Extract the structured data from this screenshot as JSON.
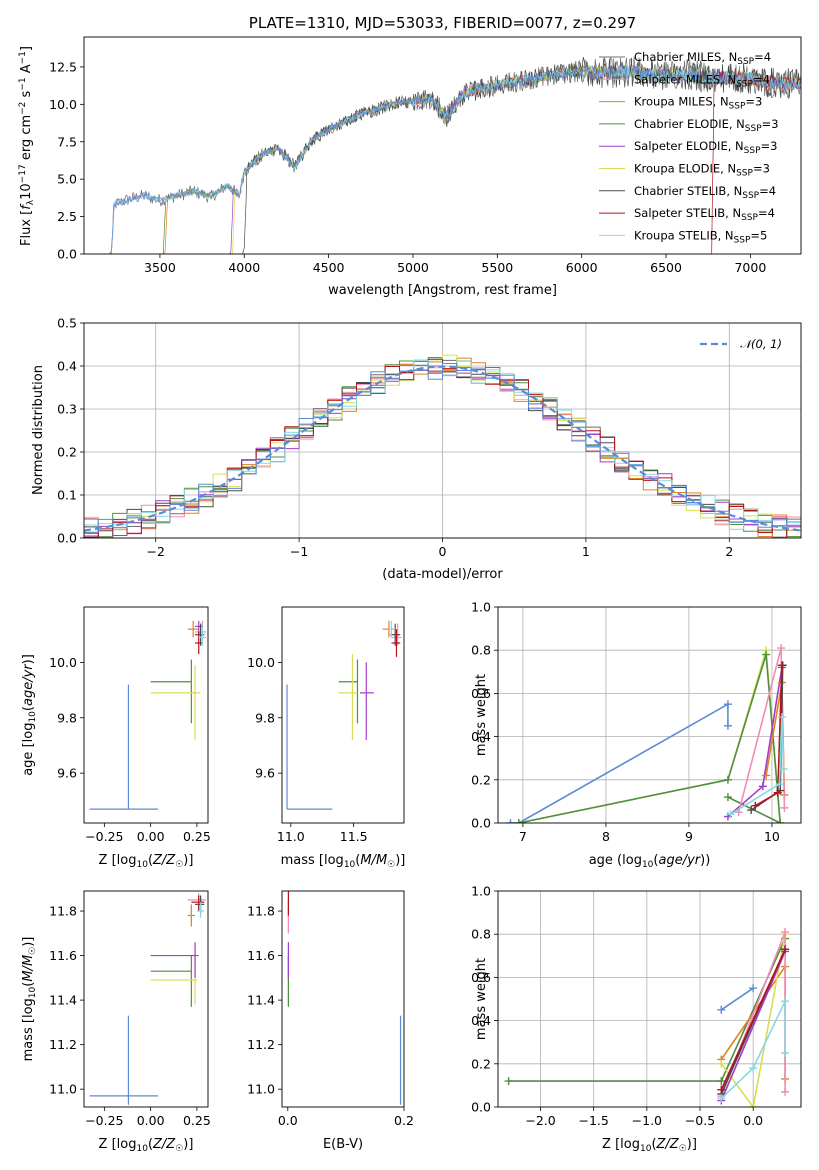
{
  "chart_data": [
    {
      "panel": "spectrum",
      "type": "line",
      "title": "PLATE=1310, MJD=53033, FIBERID=0077, z=0.297",
      "xlabel": "wavelength [Angstrom, rest frame]",
      "ylabel": "Flux [f_λ10^-17 erg cm^-2 s^-1 A^-1]",
      "xlim": [
        3050,
        7300
      ],
      "ylim": [
        0,
        14.5
      ],
      "xticks": [
        "3500",
        "4000",
        "4500",
        "5000",
        "5500",
        "6000",
        "6500",
        "7000"
      ],
      "yticks": [
        "0.0",
        "2.5",
        "5.0",
        "7.5",
        "10.0",
        "12.5"
      ],
      "legend": "top-right",
      "continuum": [
        [
          3200,
          0
        ],
        [
          3230,
          3.3
        ],
        [
          3300,
          3.6
        ],
        [
          3400,
          3.9
        ],
        [
          3500,
          3.6
        ],
        [
          3600,
          3.9
        ],
        [
          3700,
          4.2
        ],
        [
          3800,
          3.8
        ],
        [
          3900,
          4.6
        ],
        [
          3970,
          3.9
        ],
        [
          4000,
          5.5
        ],
        [
          4100,
          6.6
        ],
        [
          4200,
          7.1
        ],
        [
          4300,
          5.8
        ],
        [
          4400,
          7.6
        ],
        [
          4500,
          8.3
        ],
        [
          4600,
          8.9
        ],
        [
          4700,
          9.4
        ],
        [
          4800,
          9.7
        ],
        [
          4900,
          10.1
        ],
        [
          5000,
          10.2
        ],
        [
          5100,
          10.4
        ],
        [
          5200,
          9.2
        ],
        [
          5300,
          10.7
        ],
        [
          5400,
          11.0
        ],
        [
          5500,
          11.3
        ],
        [
          5600,
          11.5
        ],
        [
          5700,
          11.7
        ],
        [
          5800,
          11.9
        ],
        [
          5900,
          12.1
        ],
        [
          6000,
          12.2
        ],
        [
          6100,
          12.1
        ],
        [
          6200,
          12.1
        ],
        [
          6300,
          12.2
        ],
        [
          6400,
          12.0
        ],
        [
          6500,
          11.9
        ],
        [
          6600,
          12.0
        ],
        [
          6700,
          11.9
        ],
        [
          6800,
          11.8
        ],
        [
          6900,
          11.8
        ],
        [
          7000,
          11.7
        ],
        [
          7100,
          11.5
        ],
        [
          7200,
          11.4
        ]
      ],
      "cutoff_wavelengths": [
        3210,
        3210,
        3530,
        3520,
        3920,
        3930,
        4000,
        6770
      ],
      "series": [
        {
          "name": "Chabrier MILES",
          "nssp": "4",
          "color": "#6d6d6d"
        },
        {
          "name": "Salpeter MILES",
          "nssp": "4",
          "color": "#f28bb5"
        },
        {
          "name": "Kroupa MILES",
          "nssp": "3",
          "color": "#e0821f"
        },
        {
          "name": "Chabrier ELODIE",
          "nssp": "3",
          "color": "#4f8f3f"
        },
        {
          "name": "Salpeter ELODIE",
          "nssp": "3",
          "color": "#a23cc9"
        },
        {
          "name": "Kroupa ELODIE",
          "nssp": "3",
          "color": "#d9dc55"
        },
        {
          "name": "Chabrier STELIB",
          "nssp": "4",
          "color": "#4a4a4a"
        },
        {
          "name": "Salpeter STELIB",
          "nssp": "4",
          "color": "#b5121b"
        },
        {
          "name": "Kroupa STELIB",
          "nssp": "5",
          "color": "#86d9e2"
        }
      ]
    },
    {
      "panel": "residual_histogram",
      "type": "line",
      "xlabel": "(data-model)/error",
      "ylabel": "Normed distribution",
      "xlim": [
        -2.5,
        2.5
      ],
      "ylim": [
        0,
        0.5
      ],
      "xticks": [
        "−2",
        "−1",
        "0",
        "1",
        "2"
      ],
      "yticks": [
        "0.0",
        "0.1",
        "0.2",
        "0.3",
        "0.4",
        "0.5"
      ],
      "grid": true,
      "legend": "top-right",
      "gaussian_label": "𝒩(0, 1)",
      "gaussian_color": "#5b8bd6",
      "bin_width": 0.1,
      "histogram_colors": [
        "#6d6d6d",
        "#f28bb5",
        "#e0821f",
        "#4f8f3f",
        "#a23cc9",
        "#d9dc55",
        "#4a4a4a",
        "#b5121b",
        "#86d9e2",
        "#5b8bd6"
      ]
    },
    {
      "panel": "age_vs_Z",
      "type": "scatter",
      "xlabel": "Z [log10(Z/Z☉)]",
      "ylabel": "age [log10(age/yr)]",
      "xlim": [
        -0.36,
        0.31
      ],
      "ylim": [
        9.42,
        10.2
      ],
      "xticks": [
        "−0.25",
        "0.00",
        "0.25"
      ],
      "yticks": [
        "9.6",
        "9.8",
        "10.0"
      ],
      "points": [
        {
          "c": "#5b8bd6",
          "x": -0.12,
          "y": 9.47,
          "xl": -0.33,
          "xh": 0.04,
          "yl": 9.47,
          "yh": 9.92
        },
        {
          "c": "#4f8f3f",
          "x": 0.22,
          "y": 9.93,
          "xl": 0.0,
          "xh": 0.22,
          "yl": 9.78,
          "yh": 10.01
        },
        {
          "c": "#d9dc55",
          "x": 0.24,
          "y": 9.89,
          "xl": 0.0,
          "xh": 0.27,
          "yl": 9.72,
          "yh": 9.99
        },
        {
          "c": "#e0821f",
          "x": 0.23,
          "y": 10.12,
          "xl": 0.2,
          "xh": 0.26,
          "yl": 10.09,
          "yh": 10.15
        },
        {
          "c": "#f28bb5",
          "x": 0.28,
          "y": 10.11,
          "xl": 0.24,
          "xh": 0.3,
          "yl": 10.08,
          "yh": 10.15
        },
        {
          "c": "#a23cc9",
          "x": 0.26,
          "y": 10.13,
          "xl": 0.24,
          "xh": 0.28,
          "yl": 10.1,
          "yh": 10.15
        },
        {
          "c": "#4a4a4a",
          "x": 0.27,
          "y": 10.1,
          "xl": 0.24,
          "xh": 0.29,
          "yl": 10.06,
          "yh": 10.14
        },
        {
          "c": "#b5121b",
          "x": 0.26,
          "y": 10.07,
          "xl": 0.24,
          "xh": 0.28,
          "yl": 10.03,
          "yh": 10.11
        },
        {
          "c": "#86d9e2",
          "x": 0.28,
          "y": 10.09,
          "xl": 0.26,
          "xh": 0.3,
          "yl": 10.06,
          "yh": 10.13
        }
      ]
    },
    {
      "panel": "age_vs_mass",
      "type": "scatter",
      "xlabel": "mass [log10(M/M☉)]",
      "ylabel": "",
      "xlim": [
        10.93,
        11.9
      ],
      "ylim": [
        9.42,
        10.2
      ],
      "xticks": [
        "11.0",
        "11.5"
      ],
      "yticks": [
        "9.6",
        "9.8",
        "10.0"
      ],
      "points": [
        {
          "c": "#5b8bd6",
          "x": 10.97,
          "y": 9.47,
          "xl": 10.97,
          "xh": 11.33,
          "yl": 9.47,
          "yh": 9.92
        },
        {
          "c": "#4f8f3f",
          "x": 11.53,
          "y": 9.93,
          "xl": 11.38,
          "xh": 11.53,
          "yl": 9.78,
          "yh": 10.01
        },
        {
          "c": "#d9dc55",
          "x": 11.49,
          "y": 9.89,
          "xl": 11.38,
          "xh": 11.53,
          "yl": 9.72,
          "yh": 10.03
        },
        {
          "c": "#a23cc9",
          "x": 11.6,
          "y": 9.89,
          "xl": 11.55,
          "xh": 11.66,
          "yl": 9.72,
          "yh": 10.0
        },
        {
          "c": "#e0821f",
          "x": 11.78,
          "y": 10.12,
          "xl": 11.73,
          "xh": 11.83,
          "yl": 10.09,
          "yh": 10.15
        },
        {
          "c": "#f28bb5",
          "x": 11.85,
          "y": 10.09,
          "xl": 11.8,
          "xh": 11.88,
          "yl": 10.06,
          "yh": 10.14
        },
        {
          "c": "#4a4a4a",
          "x": 11.83,
          "y": 10.1,
          "xl": 11.79,
          "xh": 11.87,
          "yl": 10.06,
          "yh": 10.14
        },
        {
          "c": "#b5121b",
          "x": 11.84,
          "y": 10.07,
          "xl": 11.8,
          "xh": 11.87,
          "yl": 10.02,
          "yh": 10.12
        },
        {
          "c": "#86d9e2",
          "x": 11.8,
          "y": 10.12,
          "xl": 11.77,
          "xh": 11.83,
          "yl": 10.09,
          "yh": 10.15
        }
      ]
    },
    {
      "panel": "weight_vs_age",
      "type": "line",
      "xlabel": "age [log10(age/yr)]",
      "ylabel": "mass weight",
      "xlim": [
        6.7,
        10.35
      ],
      "ylim": [
        0,
        1.0
      ],
      "xticks": [
        "7",
        "8",
        "9",
        "10"
      ],
      "yticks": [
        "0.0",
        "0.2",
        "0.4",
        "0.6",
        "0.8",
        "1.0"
      ],
      "grid": true,
      "series": [
        {
          "c": "#5b8bd6",
          "pts": [
            [
              6.85,
              0.0
            ],
            [
              6.95,
              0.0
            ],
            [
              9.47,
              0.55
            ],
            [
              9.47,
              0.45
            ]
          ]
        },
        {
          "c": "#d9dc55",
          "pts": [
            [
              6.95,
              0.0
            ],
            [
              9.47,
              0.2
            ],
            [
              9.93,
              0.8
            ],
            [
              10.1,
              0.0
            ]
          ]
        },
        {
          "c": "#4f8f3f",
          "pts": [
            [
              6.95,
              0.0
            ],
            [
              9.47,
              0.2
            ],
            [
              9.93,
              0.78
            ],
            [
              10.1,
              0.0
            ],
            [
              9.47,
              0.12
            ]
          ]
        },
        {
          "c": "#a23cc9",
          "pts": [
            [
              9.47,
              0.03
            ],
            [
              9.89,
              0.17
            ],
            [
              10.12,
              0.72
            ]
          ]
        },
        {
          "c": "#e0821f",
          "pts": [
            [
              9.93,
              0.22
            ],
            [
              10.12,
              0.65
            ],
            [
              10.15,
              0.13
            ]
          ]
        },
        {
          "c": "#f28bb5",
          "pts": [
            [
              9.6,
              0.05
            ],
            [
              10.11,
              0.81
            ],
            [
              10.15,
              0.07
            ]
          ]
        },
        {
          "c": "#4a4a4a",
          "pts": [
            [
              9.75,
              0.06
            ],
            [
              10.1,
              0.15
            ],
            [
              10.13,
              0.73
            ]
          ]
        },
        {
          "c": "#b5121b",
          "pts": [
            [
              9.8,
              0.08
            ],
            [
              10.07,
              0.14
            ],
            [
              10.12,
              0.73
            ]
          ]
        },
        {
          "c": "#86d9e2",
          "pts": [
            [
              9.5,
              0.04
            ],
            [
              10.09,
              0.18
            ],
            [
              10.12,
              0.49
            ],
            [
              10.14,
              0.25
            ]
          ]
        }
      ]
    },
    {
      "panel": "mass_vs_Z",
      "type": "scatter",
      "xlabel": "Z [log10(Z/Z☉)]",
      "ylabel": "mass [log10(M/M☉)]",
      "xlim": [
        -0.36,
        0.31
      ],
      "ylim": [
        10.92,
        11.89
      ],
      "xticks": [
        "−0.25",
        "0.00",
        "0.25"
      ],
      "yticks": [
        "11.0",
        "11.2",
        "11.4",
        "11.6",
        "11.8"
      ],
      "points": [
        {
          "c": "#5b8bd6",
          "x": -0.12,
          "y": 10.97,
          "xl": -0.33,
          "xh": 0.04,
          "yl": 10.93,
          "yh": 11.33
        },
        {
          "c": "#4f8f3f",
          "x": 0.22,
          "y": 11.53,
          "xl": 0.0,
          "xh": 0.22,
          "yl": 11.37,
          "yh": 11.6
        },
        {
          "c": "#d9dc55",
          "x": 0.24,
          "y": 11.49,
          "xl": 0.0,
          "xh": 0.25,
          "yl": 11.38,
          "yh": 11.62
        },
        {
          "c": "#a23cc9",
          "x": 0.24,
          "y": 11.6,
          "xl": 0.0,
          "xh": 0.26,
          "yl": 11.5,
          "yh": 11.66
        },
        {
          "c": "#e0821f",
          "x": 0.22,
          "y": 11.78,
          "xl": 0.2,
          "xh": 0.24,
          "yl": 11.73,
          "yh": 11.83
        },
        {
          "c": "#f28bb5",
          "x": 0.26,
          "y": 11.85,
          "xl": 0.2,
          "xh": 0.3,
          "yl": 11.8,
          "yh": 11.88
        },
        {
          "c": "#4a4a4a",
          "x": 0.27,
          "y": 11.83,
          "xl": 0.24,
          "xh": 0.29,
          "yl": 11.79,
          "yh": 11.87
        },
        {
          "c": "#b5121b",
          "x": 0.26,
          "y": 11.84,
          "xl": 0.22,
          "xh": 0.29,
          "yl": 11.8,
          "yh": 11.87
        },
        {
          "c": "#86d9e2",
          "x": 0.27,
          "y": 11.8,
          "xl": 0.25,
          "xh": 0.29,
          "yl": 11.77,
          "yh": 11.84
        }
      ]
    },
    {
      "panel": "mass_vs_EBV",
      "type": "scatter",
      "xlabel": "E(B-V)",
      "ylabel": "",
      "xlim": [
        -0.01,
        0.2
      ],
      "ylim": [
        10.92,
        11.89
      ],
      "xticks": [
        "0.0",
        "0.2"
      ],
      "yticks": [
        "11.0",
        "11.2",
        "11.4",
        "11.6",
        "11.8"
      ],
      "points": [
        {
          "c": "#5b8bd6",
          "x": 0.194,
          "y": 11.0,
          "yl": 10.93,
          "yh": 11.33
        },
        {
          "c": "#d9dc55",
          "x": 0.001,
          "y": 11.49,
          "yl": 11.38,
          "yh": 11.62
        },
        {
          "c": "#4f8f3f",
          "x": 0.001,
          "y": 11.53,
          "yl": 11.37,
          "yh": 11.6
        },
        {
          "c": "#a23cc9",
          "x": 0.001,
          "y": 11.6,
          "yl": 11.5,
          "yh": 11.66
        },
        {
          "c": "#86d9e2",
          "x": 0.001,
          "y": 11.8,
          "yl": 11.7,
          "yh": 11.85
        },
        {
          "c": "#f28bb5",
          "x": 0.001,
          "y": 11.78,
          "yl": 11.7,
          "yh": 11.85
        },
        {
          "c": "#b5121b",
          "x": 0.001,
          "y": 11.84,
          "yl": 11.78,
          "yh": 11.89
        }
      ]
    },
    {
      "panel": "weight_vs_Z",
      "type": "line",
      "xlabel": "Z [log10(Z/Z☉)]",
      "ylabel": "mass weight",
      "xlim": [
        -2.4,
        0.45
      ],
      "ylim": [
        0,
        1.0
      ],
      "xticks": [
        "−2.0",
        "−1.5",
        "−1.0",
        "−0.5",
        "0.0"
      ],
      "yticks": [
        "0.0",
        "0.2",
        "0.4",
        "0.6",
        "0.8",
        "1.0"
      ],
      "grid": true,
      "series": [
        {
          "c": "#4f8f3f",
          "pts": [
            [
              -2.3,
              0.12
            ],
            [
              -0.3,
              0.12
            ],
            [
              0.3,
              0.78
            ]
          ]
        },
        {
          "c": "#5b8bd6",
          "pts": [
            [
              -0.3,
              0.45
            ],
            [
              0.0,
              0.55
            ]
          ]
        },
        {
          "c": "#e0821f",
          "pts": [
            [
              -0.3,
              0.22
            ],
            [
              0.3,
              0.65
            ],
            [
              0.3,
              0.13
            ]
          ]
        },
        {
          "c": "#d9dc55",
          "pts": [
            [
              -0.3,
              0.2
            ],
            [
              0.0,
              0.0
            ],
            [
              0.3,
              0.8
            ]
          ]
        },
        {
          "c": "#a23cc9",
          "pts": [
            [
              -0.3,
              0.03
            ],
            [
              0.3,
              0.72
            ]
          ]
        },
        {
          "c": "#f28bb5",
          "pts": [
            [
              -0.3,
              0.05
            ],
            [
              0.3,
              0.81
            ],
            [
              0.3,
              0.07
            ]
          ]
        },
        {
          "c": "#4a4a4a",
          "pts": [
            [
              -0.3,
              0.06
            ],
            [
              0.3,
              0.73
            ]
          ]
        },
        {
          "c": "#b5121b",
          "pts": [
            [
              -0.3,
              0.08
            ],
            [
              0.3,
              0.73
            ]
          ]
        },
        {
          "c": "#86d9e2",
          "pts": [
            [
              -0.3,
              0.04
            ],
            [
              0.0,
              0.18
            ],
            [
              0.3,
              0.49
            ],
            [
              0.3,
              0.25
            ]
          ]
        }
      ]
    }
  ]
}
